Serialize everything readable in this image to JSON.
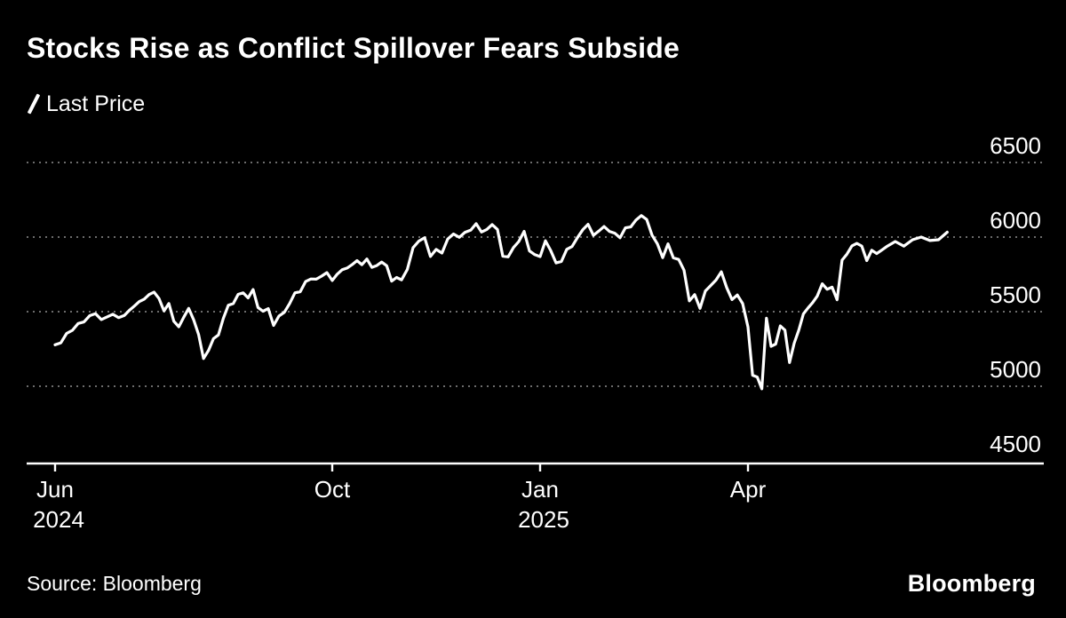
{
  "footer": {
    "logo": "Bloomberg"
  },
  "chart_data": {
    "type": "line",
    "title": "Stocks Rise as Conflict Spillover Fears Subside",
    "source_note": "Source: Bloomberg",
    "grid": "dotted horizontal gridlines, black background",
    "legend_position": "top-left",
    "y_axis": {
      "side": "right",
      "tick_labels": [
        "6500",
        "6000",
        "5500",
        "5000",
        "4500"
      ],
      "tick_values": [
        6500,
        6000,
        5500,
        5000,
        4500
      ],
      "gridline_values": [
        6500,
        6000,
        5500,
        5000
      ],
      "ylim": [
        4480,
        6680
      ]
    },
    "x_axis": {
      "unit": "months since June 2024",
      "xlim_months": [
        -0.4,
        14.3
      ],
      "ticks": [
        {
          "m": 0,
          "label": "Jun",
          "sublabel": "2024"
        },
        {
          "m": 4,
          "label": "Oct",
          "sublabel": ""
        },
        {
          "m": 7,
          "label": "Jan",
          "sublabel": "2025"
        },
        {
          "m": 10,
          "label": "Apr",
          "sublabel": ""
        }
      ]
    },
    "series": [
      {
        "name": "Last Price",
        "color": "#ffffff",
        "points_by_month": [
          {
            "m": 0,
            "month": "Jun 2024",
            "values": [
              5278,
              5291,
              5354,
              5375,
              5421,
              5431,
              5473,
              5487,
              5447,
              5465,
              5483,
              5460
            ]
          },
          {
            "m": 1,
            "month": "Jul 2024",
            "values": [
              5475,
              5509,
              5537,
              5567,
              5584,
              5615,
              5631,
              5588,
              5505,
              5555,
              5436,
              5399,
              5463,
              5522
            ]
          },
          {
            "m": 2,
            "month": "Aug 2024",
            "values": [
              5446,
              5346,
              5186,
              5240,
              5319,
              5344,
              5455,
              5543,
              5554,
              5616,
              5626,
              5592,
              5648,
              5528
            ]
          },
          {
            "m": 3,
            "month": "Sep 2024",
            "values": [
              5503,
              5520,
              5408,
              5471,
              5495,
              5554,
              5626,
              5634,
              5702,
              5719,
              5718,
              5738,
              5762
            ]
          },
          {
            "m": 4,
            "month": "Oct 2024",
            "values": [
              5709,
              5751,
              5781,
              5792,
              5815,
              5842,
              5815,
              5853,
              5797,
              5809,
              5833,
              5808,
              5705,
              5729
            ]
          },
          {
            "m": 5,
            "month": "Nov 2024",
            "values": [
              5713,
              5783,
              5929,
              5973,
              5996,
              5870,
              5917,
              5893,
              5987,
              6021,
              5998,
              6032
            ]
          },
          {
            "m": 6,
            "month": "Dec 2024",
            "values": [
              6047,
              6090,
              6034,
              6051,
              6084,
              6051,
              5872,
              5867,
              5930,
              5970,
              6038,
              5907,
              5882
            ]
          },
          {
            "m": 7,
            "month": "Jan 2025",
            "values": [
              5869,
              5975,
              5909,
              5827,
              5837,
              5918,
              5937,
              5996,
              6049,
              6086,
              6012,
              6040,
              6071
            ]
          },
          {
            "m": 8,
            "month": "Feb 2025",
            "values": [
              6038,
              6026,
              5995,
              6062,
              6068,
              6115,
              6144,
              6118,
              6013,
              5955,
              5862,
              5955,
              5861
            ]
          },
          {
            "m": 9,
            "month": "Mar 2025",
            "values": [
              5850,
              5778,
              5572,
              5614,
              5522,
              5638,
              5675,
              5712,
              5767,
              5662,
              5581,
              5612,
              5554
            ]
          },
          {
            "m": 10,
            "month": "Apr 2025",
            "values": [
              5397,
              5074,
              5062,
              4983,
              5456,
              5268,
              5283,
              5405,
              5376,
              5159,
              5288,
              5376,
              5485,
              5525,
              5561
            ]
          },
          {
            "m": 11,
            "month": "May 2025",
            "values": [
              5605,
              5687,
              5650,
              5664,
              5580,
              5845,
              5886,
              5941,
              5958,
              5940,
              5842,
              5912,
              5889,
              5912
            ]
          },
          {
            "m": 12,
            "month": "Jun 2025",
            "values": [
              5936,
              5970,
              5939,
              5982,
              6000,
              5977,
              5982,
              6033
            ]
          }
        ]
      }
    ]
  }
}
